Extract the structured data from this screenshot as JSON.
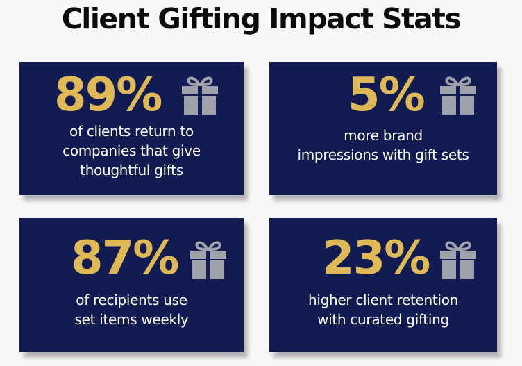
{
  "title": "Client Gifting Impact Stats",
  "colors": {
    "card_background": "#121b52",
    "stat_gold": "#e0b957",
    "icon_gray": "#9fa1ab",
    "text_white": "#ffffff"
  },
  "cards": [
    {
      "stat": "89%",
      "icon": "gift-icon",
      "lines": [
        "of clients return to",
        "companies that give",
        "thoughtful gifts"
      ]
    },
    {
      "stat": "5%",
      "icon": "gift-icon",
      "lines": [
        "more brand",
        "impressions with gift sets"
      ]
    },
    {
      "stat": "87%",
      "icon": "gift-icon",
      "lines": [
        "of recipients use",
        "set items weekly"
      ]
    },
    {
      "stat": "23%",
      "icon": "gift-icon",
      "lines": [
        "higher client retention",
        "with curated gifting"
      ]
    }
  ]
}
